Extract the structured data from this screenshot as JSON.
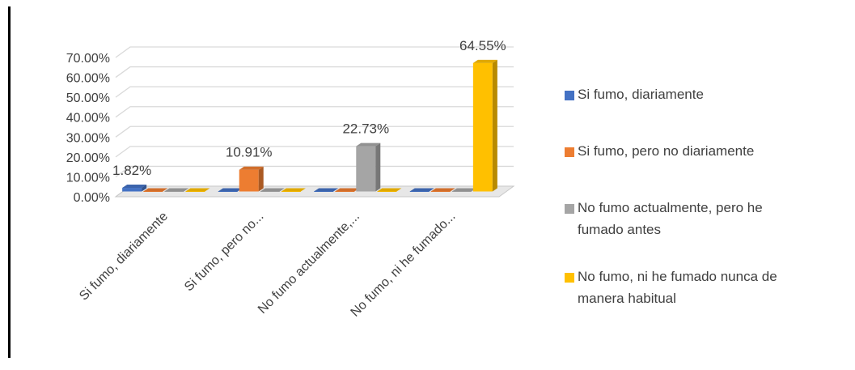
{
  "chart_data": {
    "type": "bar",
    "categories": [
      "Si fumo, diariamente",
      "Si fumo, pero no...",
      "No fumo actualmente,...",
      "No fumo, ni he fumado..."
    ],
    "series": [
      {
        "name": "Si fumo, diariamente",
        "color": "#4472C4",
        "values": [
          1.82,
          0,
          0,
          0
        ]
      },
      {
        "name": "Si fumo, pero no diariamente",
        "color": "#ED7D31",
        "values": [
          0,
          10.91,
          0,
          0
        ]
      },
      {
        "name": "No fumo actualmente, pero he fumado antes",
        "color": "#A5A5A5",
        "values": [
          0,
          0,
          22.73,
          0
        ]
      },
      {
        "name": "No fumo, ni he fumado nunca de manera habitual",
        "color": "#FFC000",
        "values": [
          0,
          0,
          0,
          64.55
        ]
      }
    ],
    "data_labels": [
      "1.82%",
      "10.91%",
      "22.73%",
      "64.55%"
    ],
    "y_ticks": [
      "0.00%",
      "10.00%",
      "20.00%",
      "30.00%",
      "40.00%",
      "50.00%",
      "60.00%",
      "70.00%"
    ],
    "ylim": [
      0,
      70
    ],
    "grid": true,
    "legend_position": "right",
    "style": "3d-column"
  },
  "legend": {
    "items": [
      {
        "line1": "Si fumo, diariamente",
        "line2": "",
        "color": "#4472C4"
      },
      {
        "line1": "Si fumo, pero no diariamente",
        "line2": "",
        "color": "#ED7D31"
      },
      {
        "line1": "No fumo actualmente, pero he",
        "line2": "fumado antes",
        "color": "#A5A5A5"
      },
      {
        "line1": "No fumo, ni he fumado nunca de",
        "line2": "manera habitual",
        "color": "#FFC000"
      }
    ]
  }
}
